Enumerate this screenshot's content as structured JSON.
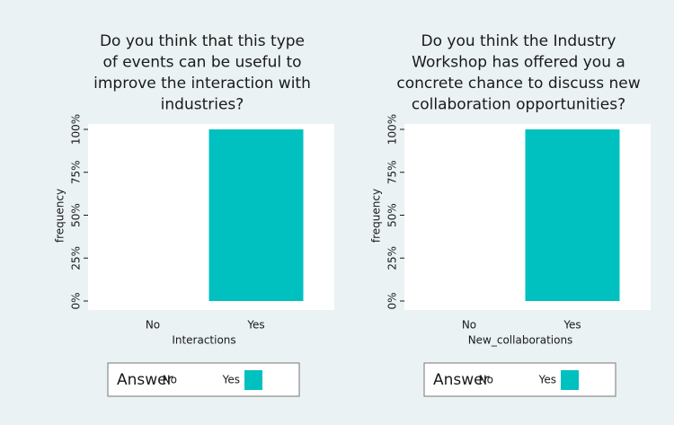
{
  "chart_data": [
    {
      "type": "bar",
      "title": [
        "Do you think that this type",
        "of events can be useful to",
        "improve the interaction with",
        "industries?"
      ],
      "xlabel": "Interactions",
      "ylabel": "frequency",
      "categories": [
        "No",
        "Yes"
      ],
      "values": [
        0,
        100
      ],
      "colors": [
        "#ffffff",
        "#00c0c0"
      ],
      "ylim": [
        0,
        100
      ],
      "yticks": [
        {
          "value": 0,
          "label": "0%"
        },
        {
          "value": 25,
          "label": "25%"
        },
        {
          "value": 50,
          "label": "50%"
        },
        {
          "value": 75,
          "label": "75%"
        },
        {
          "value": 100,
          "label": "100%"
        }
      ],
      "legend_title": "Answer"
    },
    {
      "type": "bar",
      "title": [
        "Do you think the Industry",
        "Workshop has offered you a",
        "concrete chance to discuss new",
        "collaboration opportunities?"
      ],
      "xlabel": "New_collaborations",
      "ylabel": "frequency",
      "categories": [
        "No",
        "Yes"
      ],
      "values": [
        0,
        100
      ],
      "colors": [
        "#ffffff",
        "#00c0c0"
      ],
      "ylim": [
        0,
        100
      ],
      "yticks": [
        {
          "value": 0,
          "label": "0%"
        },
        {
          "value": 25,
          "label": "25%"
        },
        {
          "value": 50,
          "label": "50%"
        },
        {
          "value": 75,
          "label": "75%"
        },
        {
          "value": 100,
          "label": "100%"
        }
      ],
      "legend_title": "Answer"
    }
  ]
}
